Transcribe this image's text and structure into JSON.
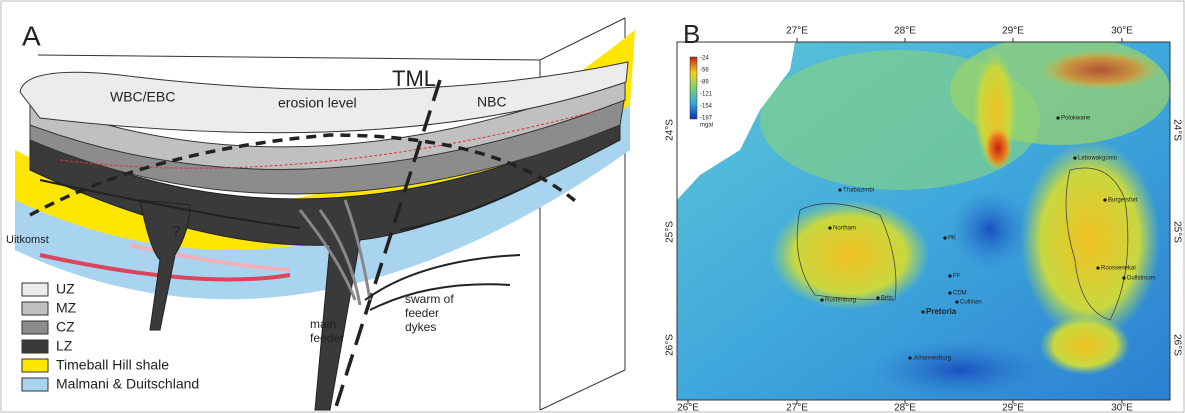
{
  "panel_a": {
    "label": "A",
    "annotations": [
      {
        "lines": [
          "WBC/EBC"
        ]
      },
      {
        "lines": [
          "erosion level"
        ]
      },
      {
        "lines": [
          "TML"
        ]
      },
      {
        "lines": [
          "NBC"
        ]
      },
      {
        "lines": [
          "?"
        ]
      },
      {
        "lines": [
          "Uitkomst"
        ]
      },
      {
        "lines": [
          "main",
          "feeder"
        ]
      },
      {
        "lines": [
          "swarm of",
          "feeder",
          "dykes"
        ]
      }
    ],
    "legend": [
      "UZ",
      "MZ",
      "CZ",
      "LZ",
      "Timeball Hill shale",
      "Malmani & Duitschland"
    ]
  },
  "panel_b": {
    "label": "B",
    "lon_top": [
      "27°E",
      "28°E",
      "29°E",
      "30°E"
    ],
    "lon_bottom": [
      "26°E",
      "27°E",
      "28°E",
      "29°E",
      "30°E"
    ],
    "lat_left": [
      "24°S",
      "25°S",
      "26°S"
    ],
    "lat_right": [
      "24°S",
      "25°S",
      "26°S"
    ],
    "colorbar": {
      "ticks": [
        "-24",
        "-56",
        "-89",
        "-121",
        "-154",
        "-187"
      ],
      "unit": "mgal"
    },
    "places": [
      "Polokwane",
      "Lebowakgomo",
      "Thabazimbi",
      "Northam",
      "Burgersfort",
      "Roossenekal",
      "Dullstroom",
      "Rustenburg",
      "Brits",
      "Pretoria",
      "Cullinan",
      "CDM",
      "FF",
      "PK",
      "Johannesburg"
    ]
  }
}
